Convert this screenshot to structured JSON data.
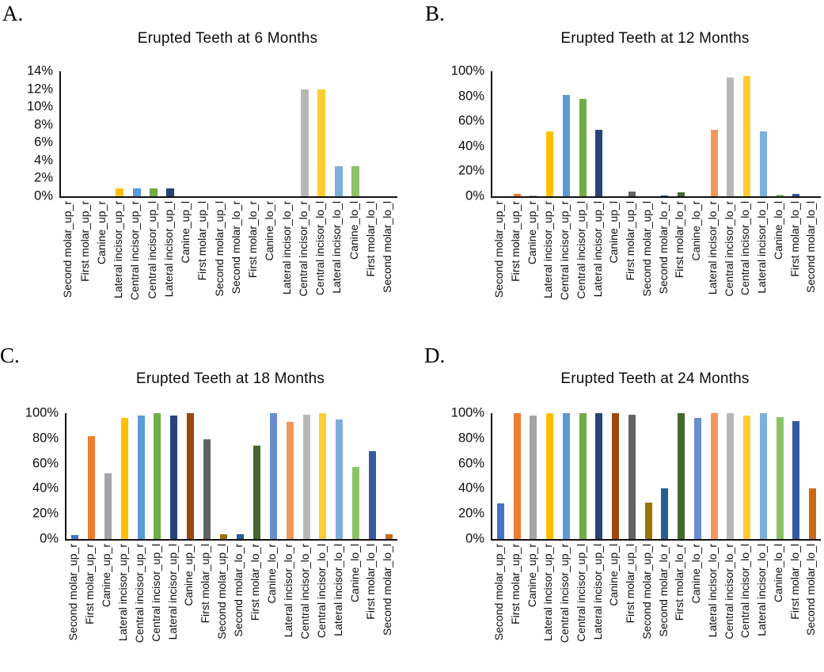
{
  "figure": {
    "background": "#ffffff",
    "text_color": "#000000",
    "axis_color": "#111111"
  },
  "chart_data": [
    {
      "type": "bar",
      "panel_label": "A.",
      "title": "Erupted Teeth at 6 Months",
      "xlabel": "",
      "ylabel": "",
      "ylim": [
        0,
        14
      ],
      "ytick_labels": [
        "0%",
        "2%",
        "4%",
        "6%",
        "8%",
        "10%",
        "12%",
        "14%"
      ],
      "ytick_values": [
        0,
        2,
        4,
        6,
        8,
        10,
        12,
        14
      ],
      "grid": false,
      "legend": false,
      "categories": [
        "Second molar_up_r",
        "First molar_up_r",
        "Canine_up_r",
        "Lateral incisor_up_r",
        "Central incisor_up_r",
        "Central incisor_up_l",
        "Lateral incisor_up_l",
        "Canine_up_l",
        "First molar_up_l",
        "Second molar_up_l",
        "Second molar_lo_r",
        "First molar_lo_r",
        "Canine_lo_r",
        "Lateral incisor_lo_r",
        "Central incisor_lo_r",
        "Central incisor_lo_l",
        "Lateral incisor_lo_l",
        "Canine_lo_l",
        "First molar_lo_l",
        "Second molar_lo_l"
      ],
      "values": [
        0,
        0,
        0,
        0.9,
        0.9,
        0.9,
        0.9,
        0,
        0,
        0,
        0,
        0,
        0,
        0,
        12,
        12,
        3.4,
        3.4,
        0,
        0
      ],
      "bar_colors": [
        "#4472C4",
        "#ED7D31",
        "#A5A5A5",
        "#FFC000",
        "#5B9BD5",
        "#70AD47",
        "#264478",
        "#9E480E",
        "#636363",
        "#997300",
        "#255E91",
        "#43682B",
        "#698ED0",
        "#F1975A",
        "#B7B7B7",
        "#FFCD33",
        "#7CAFDD",
        "#8CC168",
        "#335AA1",
        "#CB6A15"
      ]
    },
    {
      "type": "bar",
      "panel_label": "B.",
      "title": "Erupted Teeth at 12 Months",
      "xlabel": "",
      "ylabel": "",
      "ylim": [
        0,
        100
      ],
      "ytick_labels": [
        "0%",
        "20%",
        "40%",
        "60%",
        "80%",
        "100%"
      ],
      "ytick_values": [
        0,
        20,
        40,
        60,
        80,
        100
      ],
      "grid": false,
      "legend": false,
      "categories": [
        "Second molar_up_r",
        "First molar_up_r",
        "Canine_up_r",
        "Lateral incisor_up_r",
        "Central incisor_up_r",
        "Central incisor_up_l",
        "Lateral incisor_up_l",
        "Canine_up_l",
        "First molar_up_l",
        "Second molar_up_l",
        "Second molar_lo_r",
        "First molar_lo_r",
        "Canine_lo_r",
        "Lateral incisor_lo_r",
        "Central incisor_lo_r",
        "Central incisor_lo_l",
        "Lateral incisor_lo_l",
        "Canine_lo_l",
        "First molar_lo_l",
        "Second molar_lo_l"
      ],
      "values": [
        0,
        2,
        0.4,
        52,
        81,
        78,
        53,
        0,
        3.5,
        0,
        0.5,
        3,
        0,
        53,
        95,
        96,
        52,
        1.3,
        1.7,
        0
      ],
      "bar_colors": [
        "#4472C4",
        "#ED7D31",
        "#A5A5A5",
        "#FFC000",
        "#5B9BD5",
        "#70AD47",
        "#264478",
        "#9E480E",
        "#636363",
        "#997300",
        "#255E91",
        "#43682B",
        "#698ED0",
        "#F1975A",
        "#B7B7B7",
        "#FFCD33",
        "#7CAFDD",
        "#8CC168",
        "#335AA1",
        "#CB6A15"
      ]
    },
    {
      "type": "bar",
      "panel_label": "C.",
      "title": "Erupted Teeth at 18 Months",
      "xlabel": "",
      "ylabel": "",
      "ylim": [
        0,
        100
      ],
      "ytick_labels": [
        "0%",
        "20%",
        "40%",
        "60%",
        "80%",
        "100%"
      ],
      "ytick_values": [
        0,
        20,
        40,
        60,
        80,
        100
      ],
      "grid": false,
      "legend": false,
      "categories": [
        "Second molar_up_r",
        "First molar_up_r",
        "Canine_up_r",
        "Lateral incisor_up_r",
        "Central incisor_up_r",
        "Central incisor_up_l",
        "Lateral incisor_up_l",
        "Canine_up_l",
        "First molar_up_l",
        "Second molar_up_l",
        "Second molar_lo_r",
        "First molar_lo_r",
        "Canine_lo_r",
        "Lateral incisor_lo_r",
        "Central incisor_lo_r",
        "Central incisor_lo_l",
        "Lateral incisor_lo_l",
        "Canine_lo_l",
        "First molar_lo_l",
        "Second molar_lo_l"
      ],
      "values": [
        3,
        82,
        52,
        96,
        98,
        100,
        98,
        100,
        79,
        3.5,
        4,
        74,
        100,
        93,
        99,
        100,
        95,
        57,
        70,
        4
      ],
      "bar_colors": [
        "#4472C4",
        "#ED7D31",
        "#A5A5A5",
        "#FFC000",
        "#5B9BD5",
        "#70AD47",
        "#264478",
        "#9E480E",
        "#636363",
        "#997300",
        "#255E91",
        "#43682B",
        "#698ED0",
        "#F1975A",
        "#B7B7B7",
        "#FFCD33",
        "#7CAFDD",
        "#8CC168",
        "#335AA1",
        "#CB6A15"
      ]
    },
    {
      "type": "bar",
      "panel_label": "D.",
      "title": "Erupted Teeth at 24 Months",
      "xlabel": "",
      "ylabel": "",
      "ylim": [
        0,
        100
      ],
      "ytick_labels": [
        "0%",
        "20%",
        "40%",
        "60%",
        "80%",
        "100%"
      ],
      "ytick_values": [
        0,
        20,
        40,
        60,
        80,
        100
      ],
      "grid": false,
      "legend": false,
      "categories": [
        "Second molar_up_r",
        "First molar_up_r",
        "Canine_up_r",
        "Lateral incisor_up_r",
        "Central incisor_up_r",
        "Central incisor_up_l",
        "Lateral incisor_up_l",
        "Canine_up_l",
        "First molar_up_l",
        "Second molar_up_l",
        "Second molar_lo_r",
        "First molar_lo_r",
        "Canine_lo_r",
        "Lateral incisor_lo_r",
        "Central incisor_lo_r",
        "Central incisor_lo_l",
        "Lateral incisor_lo_l",
        "Canine_lo_l",
        "First molar_lo_l",
        "Second molar_lo_l"
      ],
      "values": [
        28,
        100,
        98,
        100,
        100,
        100,
        100,
        100,
        99,
        29,
        40,
        100,
        96,
        100,
        100,
        98,
        100,
        97,
        94,
        40
      ],
      "bar_colors": [
        "#4472C4",
        "#ED7D31",
        "#A5A5A5",
        "#FFC000",
        "#5B9BD5",
        "#70AD47",
        "#264478",
        "#9E480E",
        "#636363",
        "#997300",
        "#255E91",
        "#43682B",
        "#698ED0",
        "#F1975A",
        "#B7B7B7",
        "#FFCD33",
        "#7CAFDD",
        "#8CC168",
        "#335AA1",
        "#CB6A15"
      ]
    }
  ]
}
